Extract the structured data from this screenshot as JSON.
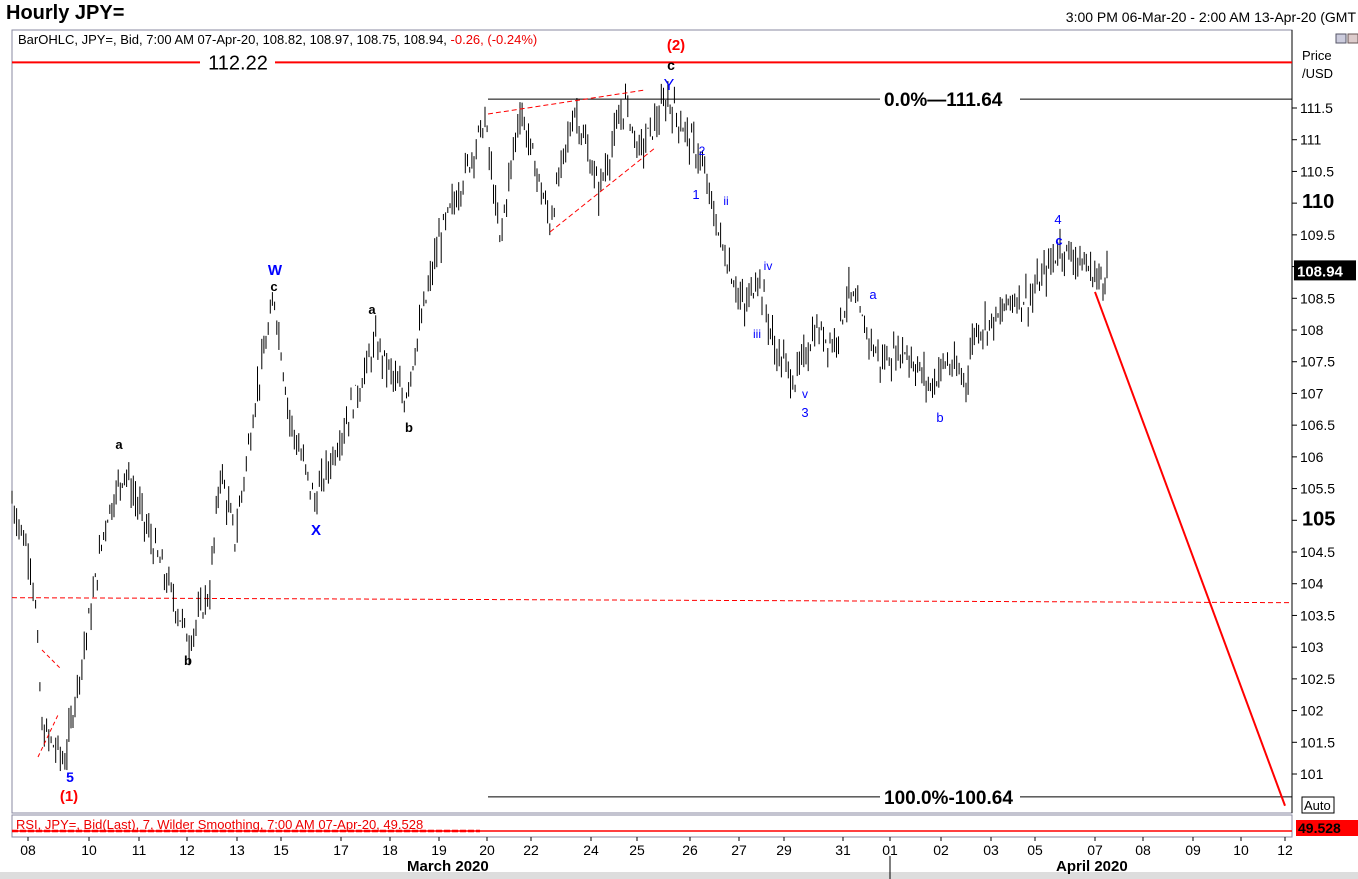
{
  "header": {
    "title": "Hourly JPY=",
    "range": "3:00 PM 06-Mar-20 - 2:00 AM 13-Apr-20 (GMT"
  },
  "info": {
    "text": "BarOHLC, JPY=, Bid, 7:00 AM 07-Apr-20, 108.82, 108.97, 108.75, 108.94,",
    "change": " -0.26, (-0.24%)"
  },
  "rsi": {
    "text": "RSI, JPY=, Bid(Last),  7, Wilder Smoothing, 7:00 AM 07-Apr-20, 49.528",
    "value": "49.528"
  },
  "axis": {
    "ylabel_1": "Price",
    "ylabel_2": "/USD",
    "auto": "Auto",
    "month_1": "March 2020",
    "month_2": "April 2020"
  },
  "colors": {
    "bars": "#000000",
    "resistance": "#ff0000",
    "wave_blue": "#0000ff",
    "wave_red": "#ff0000"
  },
  "chart_data": {
    "type": "ohlc",
    "title": "Hourly JPY=",
    "ylim": [
      100.4,
      112.6
    ],
    "yticks": [
      "111.5",
      "111",
      "110.5",
      "110",
      "109.5",
      "109",
      "108.5",
      "108",
      "107.5",
      "107",
      "106.5",
      "106",
      "105.5",
      "105",
      "104.5",
      "104",
      "103.5",
      "103",
      "102.5",
      "102",
      "101.5",
      "101"
    ],
    "xticks": [
      {
        "label": "08",
        "date": "2020-03-08"
      },
      {
        "label": "10",
        "date": "2020-03-10"
      },
      {
        "label": "11",
        "date": "2020-03-11"
      },
      {
        "label": "12",
        "date": "2020-03-12"
      },
      {
        "label": "13",
        "date": "2020-03-13"
      },
      {
        "label": "15",
        "date": "2020-03-15"
      },
      {
        "label": "17",
        "date": "2020-03-17"
      },
      {
        "label": "18",
        "date": "2020-03-18"
      },
      {
        "label": "19",
        "date": "2020-03-19"
      },
      {
        "label": "20",
        "date": "2020-03-20"
      },
      {
        "label": "22",
        "date": "2020-03-22"
      },
      {
        "label": "24",
        "date": "2020-03-24"
      },
      {
        "label": "25",
        "date": "2020-03-25"
      },
      {
        "label": "26",
        "date": "2020-03-26"
      },
      {
        "label": "27",
        "date": "2020-03-27"
      },
      {
        "label": "29",
        "date": "2020-03-29"
      },
      {
        "label": "31",
        "date": "2020-03-31"
      },
      {
        "label": "01",
        "date": "2020-04-01"
      },
      {
        "label": "02",
        "date": "2020-04-02"
      },
      {
        "label": "03",
        "date": "2020-04-03"
      },
      {
        "label": "05",
        "date": "2020-04-05"
      },
      {
        "label": "07",
        "date": "2020-04-07"
      },
      {
        "label": "08",
        "date": "2020-04-08"
      },
      {
        "label": "09",
        "date": "2020-04-09"
      },
      {
        "label": "10",
        "date": "2020-04-10"
      },
      {
        "label": "12",
        "date": "2020-04-12"
      }
    ],
    "price_path": [
      [
        "2020-03-06T15",
        105.3
      ],
      [
        "2020-03-08T02",
        104.4
      ],
      [
        "2020-03-08T06",
        103.6
      ],
      [
        "2020-03-08T11",
        101.7
      ],
      [
        "2020-03-09T05",
        101.2
      ],
      [
        "2020-03-09T13",
        102.2
      ],
      [
        "2020-03-10T01",
        103.6
      ],
      [
        "2020-03-10T08",
        105.0
      ],
      [
        "2020-03-10T17",
        105.8
      ],
      [
        "2020-03-11T06",
        104.7
      ],
      [
        "2020-03-12T01",
        103.1
      ],
      [
        "2020-03-12T11",
        103.9
      ],
      [
        "2020-03-12T16",
        105.8
      ],
      [
        "2020-03-12T23",
        104.7
      ],
      [
        "2020-03-13T20",
        106.9
      ],
      [
        "2020-03-14T17",
        108.5
      ],
      [
        "2020-03-15T07",
        106.6
      ],
      [
        "2020-03-16T03",
        105.3
      ],
      [
        "2020-03-16T23",
        106.3
      ],
      [
        "2020-03-17T17",
        107.8
      ],
      [
        "2020-03-18T07",
        106.9
      ],
      [
        "2020-03-19T00",
        109.4
      ],
      [
        "2020-03-19T23",
        111.3
      ],
      [
        "2020-03-20T14",
        109.4
      ],
      [
        "2020-03-21T12",
        111.5
      ],
      [
        "2020-03-22T15",
        109.7
      ],
      [
        "2020-03-23T11",
        111.5
      ],
      [
        "2020-03-24T04",
        110.2
      ],
      [
        "2020-03-24T18",
        111.6
      ],
      [
        "2020-03-25T01",
        110.8
      ],
      [
        "2020-03-25T14",
        111.64
      ],
      [
        "2020-03-26T05",
        110.7
      ],
      [
        "2020-03-26T15",
        109.4
      ],
      [
        "2020-03-27T06",
        108.3
      ],
      [
        "2020-03-27T20",
        108.9
      ],
      [
        "2020-03-28T14",
        107.7
      ],
      [
        "2020-03-29T09",
        107.2
      ],
      [
        "2020-03-30T01",
        108.0
      ],
      [
        "2020-03-30T17",
        107.8
      ],
      [
        "2020-03-31T03",
        108.6
      ],
      [
        "2020-03-31T19",
        107.5
      ],
      [
        "2020-04-01T07",
        107.7
      ],
      [
        "2020-04-01T19",
        107.1
      ],
      [
        "2020-04-02T02",
        107.5
      ],
      [
        "2020-04-02T12",
        107.2
      ],
      [
        "2020-04-02T16",
        108.0
      ],
      [
        "2020-04-03T10",
        108.2
      ],
      [
        "2020-04-03T21",
        108.5
      ],
      [
        "2020-04-04T19",
        108.5
      ],
      [
        "2020-04-05T20",
        109.3
      ],
      [
        "2020-04-06T12",
        109.1
      ],
      [
        "2020-04-07T02",
        108.8
      ],
      [
        "2020-04-07T07",
        108.94
      ]
    ],
    "last_price": "108.94",
    "levels": [
      {
        "label": "112.22",
        "value": 112.22,
        "color": "#ff0000"
      },
      {
        "label": "0.0%",
        "value_label": "111.64",
        "value": 111.64,
        "color": "#000000"
      },
      {
        "label": "100.0%",
        "value_label": "100.64",
        "value": 100.64,
        "color": "#000000"
      },
      {
        "value": 103.78,
        "color": "#ff0000",
        "style": "dashed"
      }
    ],
    "projection_line": {
      "from": [
        "2020-04-07T00",
        108.6
      ],
      "to": [
        "2020-04-12T00",
        100.5
      ],
      "color": "#ff0000"
    },
    "wave_labels": [
      {
        "text": "(2)",
        "color": "#ff0000"
      },
      {
        "text": "c",
        "color": "#000000"
      },
      {
        "text": "Y",
        "color": "#0000ff"
      },
      {
        "text": "W",
        "color": "#0000ff"
      },
      {
        "text": "c",
        "color": "#000000"
      },
      {
        "text": "X",
        "color": "#0000ff"
      },
      {
        "text": "a",
        "color": "#000000"
      },
      {
        "text": "b",
        "color": "#000000"
      },
      {
        "text": "a",
        "color": "#000000"
      },
      {
        "text": "b",
        "color": "#000000"
      },
      {
        "text": "5",
        "color": "#0000ff"
      },
      {
        "text": "(1)",
        "color": "#ff0000"
      },
      {
        "text": "2",
        "color": "#0000ff"
      },
      {
        "text": "1",
        "color": "#0000ff"
      },
      {
        "text": "ii",
        "color": "#0000ff"
      },
      {
        "text": "iv",
        "color": "#0000ff"
      },
      {
        "text": "iii",
        "color": "#0000ff"
      },
      {
        "text": "v",
        "color": "#0000ff"
      },
      {
        "text": "3",
        "color": "#0000ff"
      },
      {
        "text": "a",
        "color": "#0000ff"
      },
      {
        "text": "b",
        "color": "#0000ff"
      },
      {
        "text": "4",
        "color": "#0000ff"
      },
      {
        "text": "c",
        "color": "#0000ff"
      }
    ]
  }
}
